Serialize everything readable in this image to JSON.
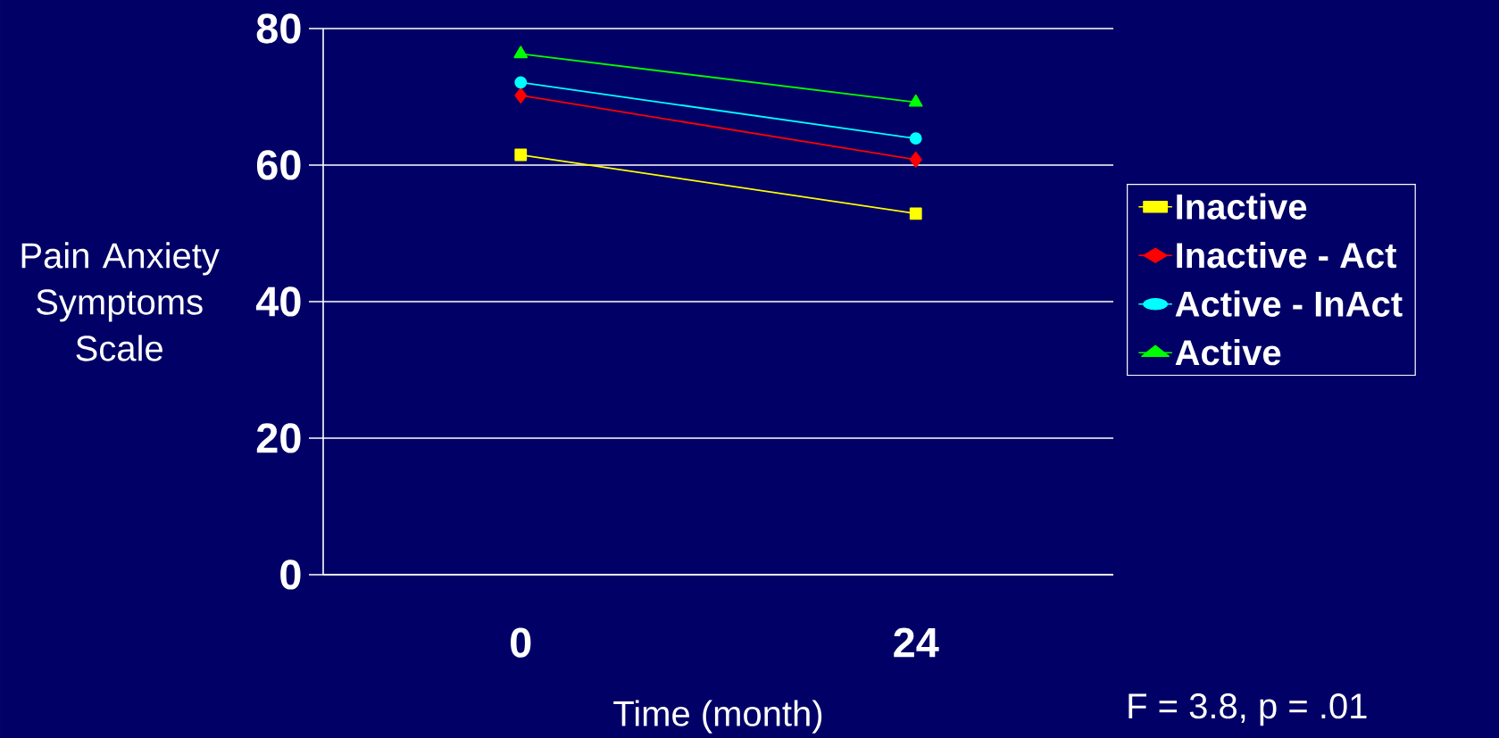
{
  "chart_data": {
    "type": "line",
    "xlabel": "Time (month)",
    "ylabel": "Pain Anxiety Symptoms Scale",
    "categories": [
      "0",
      "24"
    ],
    "series": [
      {
        "name": "Inactive",
        "color": "#ffff00",
        "marker": "square",
        "values": [
          61.5,
          52.9
        ]
      },
      {
        "name": "Inactive - Act",
        "color": "#ff0000",
        "marker": "diamond",
        "values": [
          70.2,
          60.8
        ]
      },
      {
        "name": "Active - InAct",
        "color": "#00ffff",
        "marker": "circle",
        "values": [
          72.1,
          63.9
        ]
      },
      {
        "name": "Active",
        "color": "#00ff00",
        "marker": "triangle",
        "values": [
          76.3,
          69.2
        ]
      }
    ],
    "ylim": [
      0,
      80
    ],
    "yticks": [
      0,
      20,
      40,
      60,
      80
    ],
    "grid": "y",
    "legend": "right",
    "line_style": "solid",
    "annotations": [
      "F = 3.8, p = .01"
    ]
  }
}
